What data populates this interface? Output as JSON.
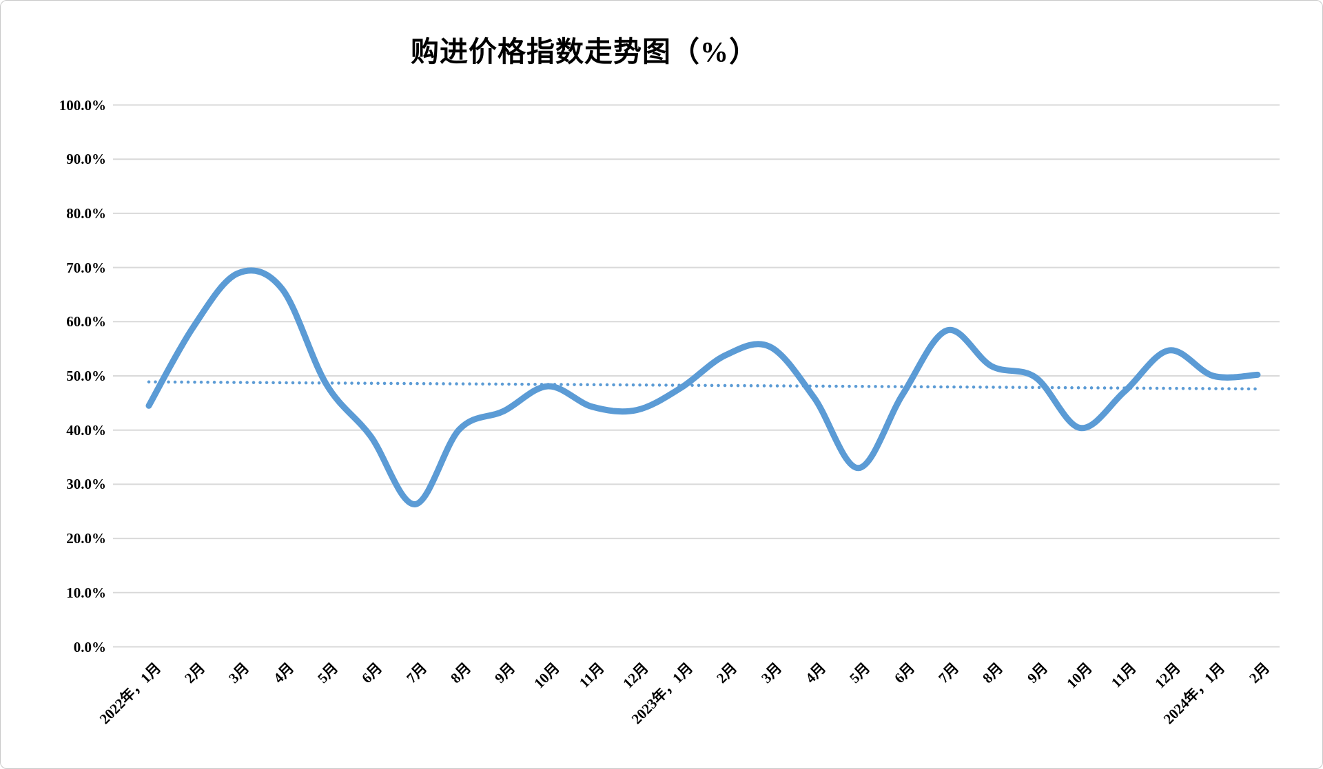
{
  "title": "购进价格指数走势图（%）",
  "chart_data": {
    "type": "line",
    "title": "购进价格指数走势图（%）",
    "categories": [
      "2022年，1月",
      "2月",
      "3月",
      "4月",
      "5月",
      "6月",
      "7月",
      "8月",
      "9月",
      "10月",
      "11月",
      "12月",
      "2023年，1月",
      "2月",
      "3月",
      "4月",
      "5月",
      "6月",
      "7月",
      "8月",
      "9月",
      "10月",
      "11月",
      "12月",
      "2024年，1月",
      "2月"
    ],
    "series": [
      {
        "name": "购进价格指数",
        "style": "smooth_solid_line",
        "color": "#5B9BD5",
        "values": [
          44.5,
          59.0,
          68.9,
          66.1,
          48.5,
          38.9,
          26.3,
          40.1,
          43.5,
          48.1,
          44.3,
          43.7,
          47.8,
          53.8,
          55.4,
          46.0,
          33.0,
          46.6,
          58.4,
          51.8,
          49.7,
          40.4,
          47.1,
          54.7,
          50.0,
          50.2
        ]
      },
      {
        "name": "线性趋势线",
        "style": "dotted_straight_line",
        "color": "#5B9BD5",
        "start_value": 48.9,
        "end_value": 47.6
      }
    ],
    "xlabel": "",
    "ylabel": "",
    "ylim": [
      0,
      100
    ],
    "ytick_step": 10,
    "ytick_labels_top_to_bottom": [
      "100.0%",
      "90.0%",
      "80.0%",
      "70.0%",
      "60.0%",
      "50.0%",
      "40.0%",
      "30.0%",
      "20.0%",
      "10.0%",
      "0.0%"
    ],
    "grid": "horizontal",
    "gridline_color": "#D9D9D9",
    "background_color": "#FFFFFF",
    "text_color": "#000000",
    "legend": "none"
  }
}
